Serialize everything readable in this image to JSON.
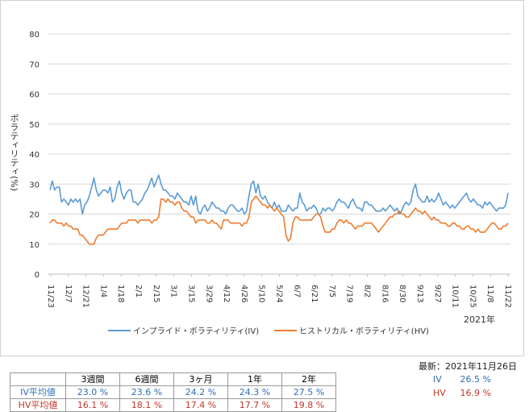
{
  "chart_data": {
    "type": "line",
    "ylabel": "ボラティリティ(%)",
    "ylim": [
      0,
      85
    ],
    "yticks": [
      0,
      10,
      20,
      30,
      40,
      50,
      60,
      70,
      80
    ],
    "grid": "horizontal",
    "x_ticks": [
      "11/23",
      "12/7",
      "12/21",
      "1/4",
      "1/18",
      "2/1",
      "2/15",
      "3/1",
      "3/15",
      "3/29",
      "4/12",
      "4/26",
      "5/10",
      "5/24",
      "6/7",
      "6/21",
      "7/5",
      "7/19",
      "8/2",
      "8/16",
      "8/30",
      "9/13",
      "9/27",
      "10/11",
      "10/25",
      "11/8",
      "11/22"
    ],
    "year_label": "2021年",
    "legend_position": "bottom",
    "series": [
      {
        "name": "インプライド・ボラティリティ(IV)",
        "color": "#5b9bd5",
        "values": [
          28,
          31,
          28,
          29,
          29,
          24,
          25,
          24,
          23,
          25,
          24,
          25,
          24,
          25,
          20,
          23,
          24,
          26,
          29,
          32,
          28,
          26,
          27,
          28,
          28,
          27,
          29,
          24,
          25,
          29,
          31,
          27,
          25,
          27,
          28,
          28,
          24,
          24,
          23,
          24,
          25,
          27,
          28,
          30,
          32,
          29,
          31,
          33,
          30,
          28,
          28,
          27,
          26,
          26,
          25,
          27,
          26,
          25,
          24,
          24,
          23,
          26,
          23,
          26,
          21,
          20,
          22,
          23,
          21,
          22,
          24,
          23,
          22,
          22,
          21,
          21,
          20,
          22,
          23,
          23,
          22,
          21,
          21,
          22,
          20,
          21,
          26,
          30,
          31,
          27,
          30,
          26,
          25,
          26,
          24,
          23,
          22,
          24,
          22,
          23,
          21,
          21,
          21,
          23,
          22,
          21,
          22,
          22,
          27,
          24,
          23,
          21,
          22,
          22,
          23,
          22,
          20,
          20,
          22,
          21,
          22,
          22,
          21,
          22,
          24,
          25,
          24,
          24,
          23,
          22,
          24,
          25,
          23,
          22,
          22,
          21,
          24,
          24,
          23,
          23,
          22,
          21,
          21,
          21,
          22,
          21,
          22,
          23,
          22,
          21,
          22,
          20,
          21,
          23,
          24,
          23,
          24,
          28,
          30,
          26,
          25,
          24,
          24,
          26,
          24,
          25,
          24,
          25,
          27,
          25,
          23,
          24,
          23,
          22,
          23,
          22,
          23,
          24,
          25,
          26,
          27,
          25,
          24,
          25,
          24,
          23,
          23,
          22,
          24,
          23,
          24,
          23,
          22,
          21,
          22,
          22,
          22,
          23,
          27
        ]
      },
      {
        "name": "ヒストリカル・ボラティリティ(HV)",
        "color": "#ed7d31",
        "values": [
          17,
          18,
          18,
          17,
          17,
          17,
          16,
          17,
          16,
          16,
          15,
          15,
          15,
          13,
          13,
          12,
          11,
          10,
          10,
          10,
          12,
          13,
          13,
          13,
          14,
          15,
          15,
          15,
          15,
          15,
          16,
          17,
          17,
          17,
          18,
          18,
          18,
          18,
          17,
          18,
          18,
          18,
          18,
          18,
          17,
          18,
          18,
          19,
          25,
          25,
          24,
          25,
          24,
          24,
          23,
          24,
          24,
          22,
          21,
          21,
          20,
          19,
          19,
          17,
          18,
          18,
          18,
          18,
          17,
          17,
          18,
          17,
          17,
          16,
          15,
          18,
          18,
          18,
          17,
          17,
          17,
          17,
          17,
          16,
          17,
          17,
          19,
          24,
          25,
          26,
          25,
          24,
          23,
          23,
          22,
          23,
          22,
          21,
          22,
          21,
          20,
          19,
          13,
          11,
          12,
          17,
          19,
          19,
          18,
          18,
          18,
          18,
          18,
          18,
          19,
          20,
          20,
          19,
          16,
          14,
          14,
          14,
          15,
          15,
          17,
          18,
          18,
          17,
          18,
          17,
          17,
          16,
          15,
          16,
          16,
          16,
          17,
          17,
          17,
          17,
          16,
          15,
          14,
          15,
          16,
          17,
          18,
          19,
          19,
          20,
          20,
          21,
          20,
          20,
          19,
          19,
          20,
          21,
          22,
          21,
          21,
          20,
          21,
          20,
          19,
          18,
          19,
          18,
          18,
          17,
          17,
          17,
          16,
          16,
          17,
          17,
          16,
          16,
          15,
          15,
          16,
          16,
          15,
          15,
          14,
          15,
          14,
          14,
          14,
          15,
          16,
          17,
          17,
          16,
          15,
          15,
          16,
          16,
          17
        ]
      }
    ]
  },
  "table": {
    "headers": [
      "3週間",
      "6週間",
      "3ヶ月",
      "1年",
      "2年"
    ],
    "rows": [
      {
        "label": "IV平均値",
        "values": [
          "23.0 %",
          "23.6 %",
          "24.2 %",
          "24.3 %",
          "27.5 %"
        ],
        "color": "#2f6fb5"
      },
      {
        "label": "HV平均値",
        "values": [
          "16.1 %",
          "18.1 %",
          "17.4 %",
          "17.7 %",
          "19.8 %"
        ],
        "color": "#c0392b"
      }
    ]
  },
  "latest": {
    "title": "最新：2021年11月26日",
    "iv_label": "IV",
    "iv_value": "26.5 %",
    "hv_label": "HV",
    "hv_value": "16.9 %"
  }
}
